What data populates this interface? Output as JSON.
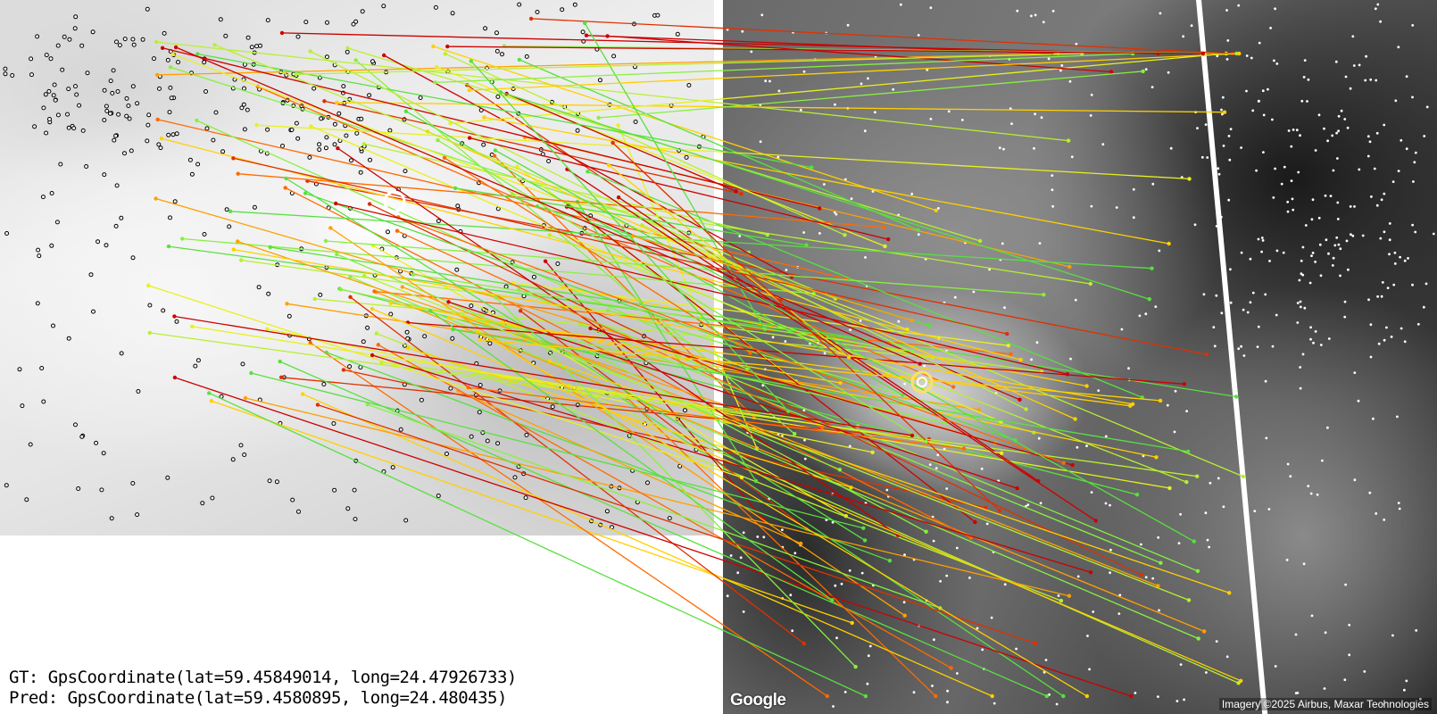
{
  "gt_text": "GT: GpsCoordinate(lat=59.45849014, long=24.47926733)",
  "pred_text": "Pred: GpsCoordinate(lat=59.4580895, long=24.480435)",
  "google_logo": "Google",
  "attribution": "Imagery ©2025 Airbus, Maxar Technologies",
  "match_colors": [
    "#cc0000",
    "#e03000",
    "#ff6a00",
    "#ffa000",
    "#ffd000",
    "#e8f020",
    "#b8f030",
    "#88f040",
    "#58e040"
  ]
}
